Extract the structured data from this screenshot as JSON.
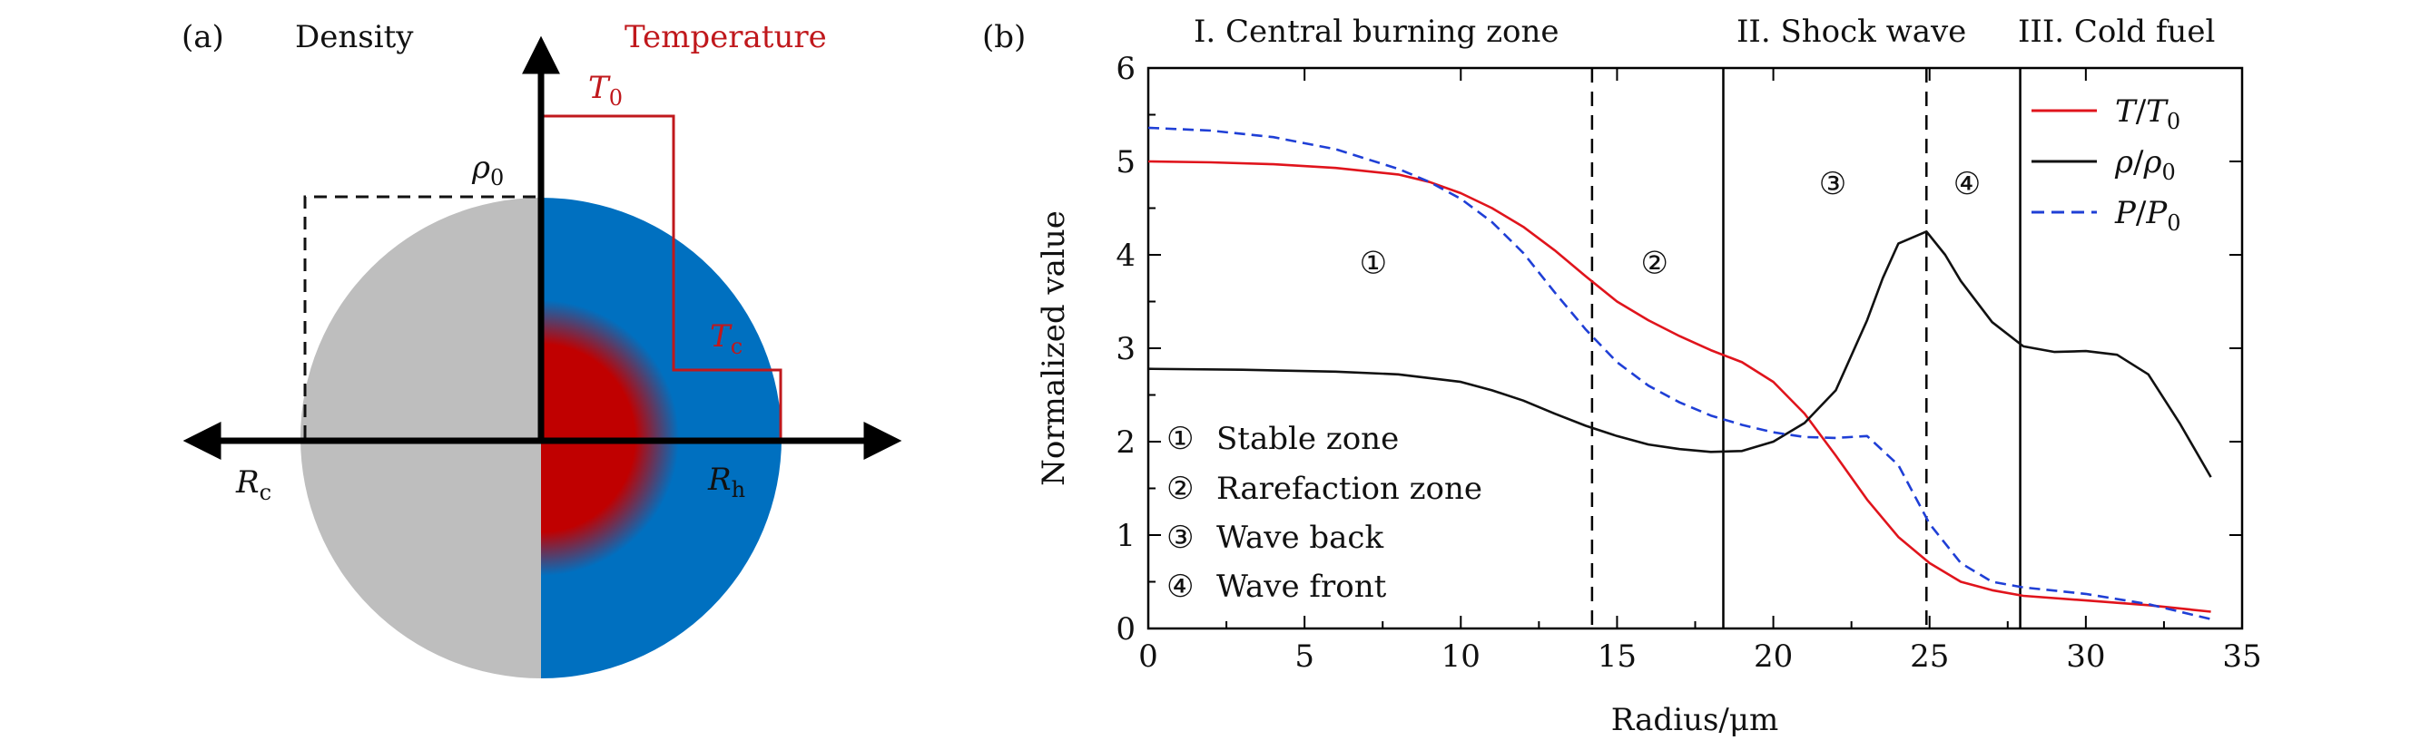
{
  "panel_a": {
    "label": "(a)",
    "density_label": "Density",
    "temperature_label": "Temperature",
    "t0_label": "T0",
    "tc_label": "Tc",
    "rho0_label": "ρ0",
    "rc_label": "Rc",
    "rh_label": "Rh",
    "colors": {
      "cold": "#bebebe",
      "hot": "#0070c0",
      "core": "#c00000",
      "temp_line": "#c0181c"
    }
  },
  "panel_b": {
    "label": "(b)",
    "zone_titles": [
      "I. Central burning zone",
      "II. Shock wave",
      "III. Cold fuel"
    ],
    "region_markers": [
      "①",
      "②",
      "③",
      "④"
    ],
    "zone_legend": [
      {
        "marker": "①",
        "text": "Stable zone"
      },
      {
        "marker": "②",
        "text": "Rarefaction zone"
      },
      {
        "marker": "③",
        "text": "Wave back"
      },
      {
        "marker": "④",
        "text": "Wave front"
      }
    ]
  },
  "chart_data": {
    "type": "line",
    "xlabel": "Radius/μm",
    "ylabel": "Normalized value",
    "xlim": [
      0,
      35
    ],
    "ylim": [
      0,
      6
    ],
    "xticks": [
      0,
      5,
      10,
      15,
      20,
      25,
      30,
      35
    ],
    "yticks": [
      0,
      1,
      2,
      3,
      4,
      5,
      6
    ],
    "dividers": [
      {
        "x": 14.2,
        "style": "dashed"
      },
      {
        "x": 18.4,
        "style": "solid"
      },
      {
        "x": 24.9,
        "style": "dashed"
      },
      {
        "x": 27.9,
        "style": "solid"
      }
    ],
    "region_marker_positions": [
      [
        7.2,
        3.8
      ],
      [
        16.2,
        3.8
      ],
      [
        21.9,
        4.65
      ],
      [
        26.2,
        4.65
      ]
    ],
    "series": [
      {
        "name": "T/T0",
        "color": "#e0141c",
        "style": "solid",
        "x": [
          0,
          2,
          4,
          6,
          8,
          9,
          10,
          11,
          12,
          13,
          14,
          15,
          16,
          17,
          18,
          19,
          20,
          21,
          22,
          23,
          24,
          25,
          26,
          27,
          28,
          30,
          32,
          34
        ],
        "y": [
          5.0,
          4.99,
          4.97,
          4.93,
          4.86,
          4.78,
          4.66,
          4.5,
          4.3,
          4.05,
          3.77,
          3.5,
          3.3,
          3.13,
          2.98,
          2.85,
          2.64,
          2.3,
          1.85,
          1.38,
          0.98,
          0.7,
          0.5,
          0.41,
          0.35,
          0.3,
          0.25,
          0.18
        ]
      },
      {
        "name": "ρ/ρ0",
        "color": "#111111",
        "style": "solid",
        "x": [
          0,
          3,
          6,
          8,
          10,
          11,
          12,
          13,
          14,
          15,
          16,
          17,
          18,
          19,
          20,
          21,
          22,
          23,
          23.5,
          24,
          24.9,
          25.5,
          26,
          27,
          28,
          29,
          30,
          31,
          32,
          33,
          34
        ],
        "y": [
          2.78,
          2.77,
          2.75,
          2.72,
          2.64,
          2.55,
          2.44,
          2.3,
          2.17,
          2.06,
          1.97,
          1.92,
          1.89,
          1.9,
          2.0,
          2.2,
          2.55,
          3.3,
          3.75,
          4.12,
          4.25,
          4.0,
          3.72,
          3.28,
          3.02,
          2.96,
          2.97,
          2.93,
          2.72,
          2.2,
          1.62
        ]
      },
      {
        "name": "P/P0",
        "color": "#1f3fd6",
        "style": "dashed",
        "x": [
          0,
          2,
          4,
          6,
          8,
          9,
          10,
          11,
          12,
          13,
          14,
          15,
          16,
          17,
          18,
          19,
          20,
          21,
          22,
          23,
          24,
          25,
          26,
          27,
          28,
          30,
          32,
          34
        ],
        "y": [
          5.36,
          5.33,
          5.26,
          5.13,
          4.92,
          4.78,
          4.6,
          4.35,
          4.02,
          3.6,
          3.2,
          2.85,
          2.6,
          2.42,
          2.28,
          2.18,
          2.1,
          2.05,
          2.04,
          2.06,
          1.75,
          1.12,
          0.7,
          0.5,
          0.44,
          0.37,
          0.26,
          0.1
        ]
      }
    ]
  }
}
